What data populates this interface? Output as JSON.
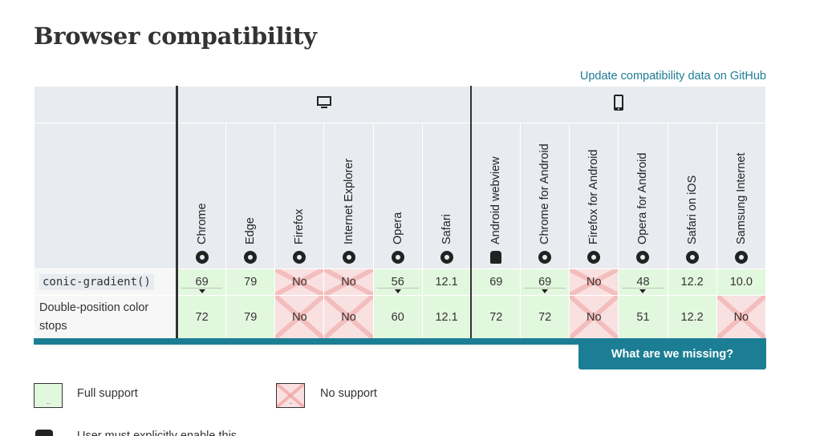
{
  "page": {
    "title": "Browser compatibility",
    "github_link": "Update compatibility data on GitHub"
  },
  "platforms": [
    {
      "name": "desktop",
      "icon": "desktop-icon"
    },
    {
      "name": "mobile",
      "icon": "mobile-icon"
    }
  ],
  "browsers": [
    {
      "label": "Chrome",
      "icon": "chrome-icon"
    },
    {
      "label": "Edge",
      "icon": "edge-icon"
    },
    {
      "label": "Firefox",
      "icon": "firefox-icon"
    },
    {
      "label": "Internet Explorer",
      "icon": "ie-icon"
    },
    {
      "label": "Opera",
      "icon": "opera-icon"
    },
    {
      "label": "Safari",
      "icon": "safari-icon"
    },
    {
      "label": "Android webview",
      "icon": "android-icon"
    },
    {
      "label": "Chrome for Android",
      "icon": "chrome-icon"
    },
    {
      "label": "Firefox for Android",
      "icon": "firefox-icon"
    },
    {
      "label": "Opera for Android",
      "icon": "opera-icon"
    },
    {
      "label": "Safari on iOS",
      "icon": "safari-icon"
    },
    {
      "label": "Samsung Internet",
      "icon": "samsung-icon"
    }
  ],
  "features": [
    {
      "name": "conic-gradient()",
      "code": true,
      "cells": [
        {
          "value": "69",
          "support": "yes",
          "notes": true
        },
        {
          "value": "79",
          "support": "yes"
        },
        {
          "value": "No",
          "support": "no"
        },
        {
          "value": "No",
          "support": "no"
        },
        {
          "value": "56",
          "support": "yes",
          "notes": true
        },
        {
          "value": "12.1",
          "support": "yes"
        },
        {
          "value": "69",
          "support": "yes"
        },
        {
          "value": "69",
          "support": "yes",
          "notes": true
        },
        {
          "value": "No",
          "support": "no"
        },
        {
          "value": "48",
          "support": "yes",
          "notes": true
        },
        {
          "value": "12.2",
          "support": "yes"
        },
        {
          "value": "10.0",
          "support": "yes"
        }
      ]
    },
    {
      "name": "Double-position color stops",
      "code": false,
      "cells": [
        {
          "value": "72",
          "support": "yes"
        },
        {
          "value": "79",
          "support": "yes"
        },
        {
          "value": "No",
          "support": "no"
        },
        {
          "value": "No",
          "support": "no"
        },
        {
          "value": "60",
          "support": "yes"
        },
        {
          "value": "12.1",
          "support": "yes"
        },
        {
          "value": "72",
          "support": "yes"
        },
        {
          "value": "72",
          "support": "yes"
        },
        {
          "value": "No",
          "support": "no"
        },
        {
          "value": "51",
          "support": "yes"
        },
        {
          "value": "12.2",
          "support": "yes"
        },
        {
          "value": "No",
          "support": "no"
        }
      ]
    }
  ],
  "missing_button": "What are we missing?",
  "legend": {
    "full_support": "Full support",
    "no_support": "No support",
    "box_mark": "..",
    "partial_text": "User must explicitly enable this"
  },
  "colors": {
    "accent": "#1b7e94",
    "full_support_bg": "#e2f8de",
    "no_support_bg": "#f9e1e1",
    "header_bg": "#e8ecf0"
  }
}
